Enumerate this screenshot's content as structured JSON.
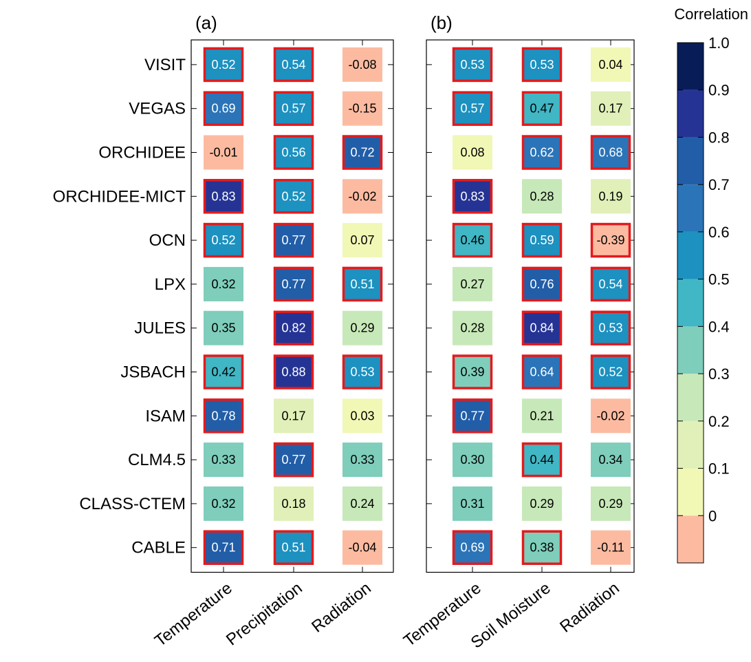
{
  "chart_data": [
    {
      "type": "heatmap",
      "title": "(a)",
      "rows": [
        "VISIT",
        "VEGAS",
        "ORCHIDEE",
        "ORCHIDEE-MICT",
        "OCN",
        "LPX",
        "JULES",
        "JSBACH",
        "ISAM",
        "CLM4.5",
        "CLASS-CTEM",
        "CABLE"
      ],
      "columns": [
        "Temperature",
        "Precipitation",
        "Radiation"
      ],
      "values": [
        [
          0.52,
          0.54,
          -0.08
        ],
        [
          0.69,
          0.57,
          -0.15
        ],
        [
          -0.01,
          0.56,
          0.72
        ],
        [
          0.83,
          0.52,
          -0.02
        ],
        [
          0.52,
          0.77,
          0.07
        ],
        [
          0.32,
          0.77,
          0.51
        ],
        [
          0.35,
          0.82,
          0.29
        ],
        [
          0.42,
          0.88,
          0.53
        ],
        [
          0.78,
          0.17,
          0.03
        ],
        [
          0.33,
          0.77,
          0.33
        ],
        [
          0.32,
          0.18,
          0.24
        ],
        [
          0.71,
          0.51,
          -0.04
        ]
      ],
      "labels": [
        [
          "0.52",
          "0.54",
          "-0.08"
        ],
        [
          "0.69",
          "0.57",
          "-0.15"
        ],
        [
          "-0.01",
          "0.56",
          "0.72"
        ],
        [
          "0.83",
          "0.52",
          "-0.02"
        ],
        [
          "0.52",
          "0.77",
          "0.07"
        ],
        [
          "0.32",
          "0.77",
          "0.51"
        ],
        [
          "0.35",
          "0.82",
          "0.29"
        ],
        [
          "0.42",
          "0.88",
          "0.53"
        ],
        [
          "0.78",
          "0.17",
          "0.03"
        ],
        [
          "0.33",
          "0.77",
          "0.33"
        ],
        [
          "0.32",
          "0.18",
          "0.24"
        ],
        [
          "0.71",
          "0.51",
          "-0.04"
        ]
      ],
      "significant": [
        [
          true,
          true,
          false
        ],
        [
          true,
          true,
          false
        ],
        [
          false,
          true,
          true
        ],
        [
          true,
          true,
          false
        ],
        [
          true,
          true,
          false
        ],
        [
          false,
          true,
          true
        ],
        [
          false,
          true,
          false
        ],
        [
          true,
          true,
          true
        ],
        [
          true,
          false,
          false
        ],
        [
          false,
          true,
          false
        ],
        [
          false,
          false,
          false
        ],
        [
          true,
          true,
          false
        ]
      ]
    },
    {
      "type": "heatmap",
      "title": "(b)",
      "rows": [
        "VISIT",
        "VEGAS",
        "ORCHIDEE",
        "ORCHIDEE-MICT",
        "OCN",
        "LPX",
        "JULES",
        "JSBACH",
        "ISAM",
        "CLM4.5",
        "CLASS-CTEM",
        "CABLE"
      ],
      "columns": [
        "Temperature",
        "Soil Moisture",
        "Radiation"
      ],
      "values": [
        [
          0.53,
          0.53,
          0.04
        ],
        [
          0.57,
          0.47,
          0.17
        ],
        [
          0.08,
          0.62,
          0.68
        ],
        [
          0.83,
          0.28,
          0.19
        ],
        [
          0.46,
          0.59,
          -0.39
        ],
        [
          0.27,
          0.76,
          0.54
        ],
        [
          0.28,
          0.84,
          0.53
        ],
        [
          0.39,
          0.64,
          0.52
        ],
        [
          0.77,
          0.21,
          -0.02
        ],
        [
          0.3,
          0.44,
          0.34
        ],
        [
          0.31,
          0.29,
          0.29
        ],
        [
          0.69,
          0.38,
          -0.11
        ]
      ],
      "labels": [
        [
          "0.53",
          "0.53",
          "0.04"
        ],
        [
          "0.57",
          "0.47",
          "0.17"
        ],
        [
          "0.08",
          "0.62",
          "0.68"
        ],
        [
          "0.83",
          "0.28",
          "0.19"
        ],
        [
          "0.46",
          "0.59",
          "-0.39"
        ],
        [
          "0.27",
          "0.76",
          "0.54"
        ],
        [
          "0.28",
          "0.84",
          "0.53"
        ],
        [
          "0.39",
          "0.64",
          "0.52"
        ],
        [
          "0.77",
          "0.21",
          "-0.02"
        ],
        [
          "0.30",
          "0.44",
          "0.34"
        ],
        [
          "0.31",
          "0.29",
          "0.29"
        ],
        [
          "0.69",
          "0.38",
          "-0.11"
        ]
      ],
      "significant": [
        [
          true,
          true,
          false
        ],
        [
          true,
          true,
          false
        ],
        [
          false,
          true,
          true
        ],
        [
          true,
          false,
          false
        ],
        [
          true,
          true,
          true
        ],
        [
          false,
          true,
          true
        ],
        [
          false,
          true,
          true
        ],
        [
          true,
          true,
          true
        ],
        [
          true,
          false,
          false
        ],
        [
          false,
          true,
          false
        ],
        [
          false,
          false,
          false
        ],
        [
          true,
          true,
          false
        ]
      ]
    }
  ],
  "colorbar": {
    "title": "Correlation",
    "tick_labels": [
      "0",
      "0.1",
      "0.2",
      "0.3",
      "0.4",
      "0.5",
      "0.6",
      "0.7",
      "0.8",
      "0.9",
      "1.0"
    ],
    "bins": [
      {
        "from": -1.0,
        "to": 0.0,
        "color": "#fcbba1"
      },
      {
        "from": 0.0,
        "to": 0.1,
        "color": "#f1f7b5"
      },
      {
        "from": 0.1,
        "to": 0.2,
        "color": "#e0f0b8"
      },
      {
        "from": 0.2,
        "to": 0.3,
        "color": "#c7e8b8"
      },
      {
        "from": 0.3,
        "to": 0.4,
        "color": "#7fcdbb"
      },
      {
        "from": 0.4,
        "to": 0.5,
        "color": "#41b6c4"
      },
      {
        "from": 0.5,
        "to": 0.6,
        "color": "#1d91c0"
      },
      {
        "from": 0.6,
        "to": 0.7,
        "color": "#2b74b8"
      },
      {
        "from": 0.7,
        "to": 0.8,
        "color": "#225ea8"
      },
      {
        "from": 0.8,
        "to": 0.9,
        "color": "#253494"
      },
      {
        "from": 0.9,
        "to": 1.0,
        "color": "#081d58"
      }
    ]
  },
  "highlight_color": "#e41a1c"
}
